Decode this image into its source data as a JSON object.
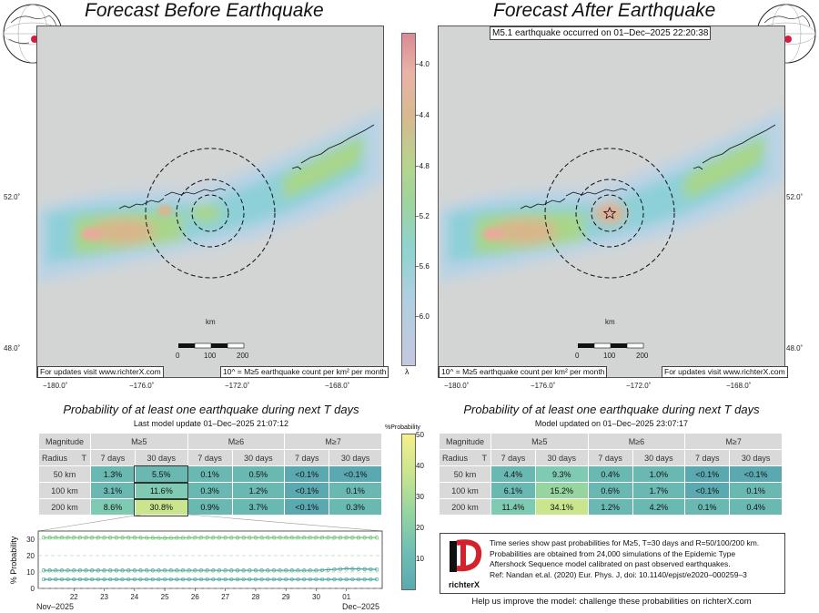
{
  "panels": {
    "before_title": "Forecast Before Earthquake",
    "after_title": "Forecast After Earthquake",
    "event_note": "M5.1 earthquake occurred on 01–Dec–2025 22:20:38",
    "updates_note": "For updates visit www.richterX.com",
    "unit_note": "10^ = M≥5 earthquake count per km² per month",
    "scale_label": "km",
    "scale_ticks": [
      "0",
      "100",
      "200"
    ],
    "lon_ticks": [
      "−180.0˚",
      "−176.0˚",
      "−172.0˚",
      "−168.0˚"
    ],
    "lat_ticks": [
      "52.0˚",
      "48.0˚"
    ]
  },
  "colorbar": {
    "label": "λ",
    "ticks": [
      "−4.0",
      "−4.4",
      "−4.8",
      "−5.2",
      "−5.6",
      "−6.0"
    ]
  },
  "prob_colorbar": {
    "title": "%Probability",
    "ticks": [
      "50",
      "40",
      "30",
      "20",
      "10"
    ]
  },
  "tables": {
    "heading": "Probability of at least one earthquake during next T days",
    "before_sub": "Last model update 01–Dec–2025 21:07:12",
    "after_sub": "Model updated on 01–Dec–2025 23:07:17",
    "hdr_magnitude": "Magnitude",
    "hdr_radius": "Radius",
    "hdr_T": "T",
    "mags": [
      "M≥5",
      "M≥6",
      "M≥7"
    ],
    "periods": [
      "7 days",
      "30 days",
      "7 days",
      "30 days",
      "7 days",
      "30 days"
    ],
    "radii": [
      "50 km",
      "100 km",
      "200 km"
    ],
    "before_rows": [
      [
        "1.3%",
        "5.5%",
        "0.1%",
        "0.5%",
        "<0.1%",
        "<0.1%"
      ],
      [
        "3.1%",
        "11.6%",
        "0.3%",
        "1.2%",
        "<0.1%",
        "0.1%"
      ],
      [
        "8.6%",
        "30.8%",
        "0.9%",
        "3.7%",
        "<0.1%",
        "0.3%"
      ]
    ],
    "after_rows": [
      [
        "4.4%",
        "9.3%",
        "0.4%",
        "1.0%",
        "<0.1%",
        "<0.1%"
      ],
      [
        "6.1%",
        "15.2%",
        "0.6%",
        "1.7%",
        "<0.1%",
        "0.1%"
      ],
      [
        "11.4%",
        "34.1%",
        "1.2%",
        "4.2%",
        "0.1%",
        "0.4%"
      ]
    ]
  },
  "info": {
    "lines": [
      "Time series show past probabilities for M≥5, T=30 days and R=50/100/200 km.",
      "Probabilities are obtained from 24,000 simulations of the Epidemic Type",
      "Aftershock Sequence model calibrated on past observed earthquakes.",
      "Ref: Nandan et.al. (2020) Eur. Phys. J, doi: 10.1140/epjst/e2020–000259–3"
    ],
    "logo_text": "richterX",
    "footer": "Help us improve the model: challenge these probabilities on richterX.com"
  },
  "chart_data": {
    "type": "line",
    "title": "",
    "xlabel": "",
    "ylabel": "% Probability",
    "ylim": [
      0,
      35
    ],
    "yticks": [
      0,
      10,
      20,
      30
    ],
    "x_ticks": [
      "22",
      "23",
      "24",
      "25",
      "26",
      "27",
      "28",
      "29",
      "30",
      "01"
    ],
    "x_start_label": "Nov–2025",
    "x_end_label": "Dec–2025",
    "x_days": [
      21,
      22,
      23,
      24,
      25,
      26,
      27,
      28,
      29,
      30,
      31,
      32
    ],
    "series": [
      {
        "values": [
          31,
          31,
          31,
          31,
          30.8,
          31,
          31,
          31,
          31,
          31,
          31,
          31
        ],
        "color": "#6fbf6f"
      },
      {
        "values": [
          11,
          11,
          11,
          11,
          11,
          11,
          11,
          11,
          11,
          11,
          12,
          11.6
        ],
        "color": "#4aa39a"
      },
      {
        "values": [
          5.5,
          5.5,
          5.5,
          5.5,
          5.5,
          5.5,
          5.5,
          5.5,
          5.5,
          5.5,
          5.5,
          5.5
        ],
        "color": "#4aa39a"
      }
    ]
  }
}
